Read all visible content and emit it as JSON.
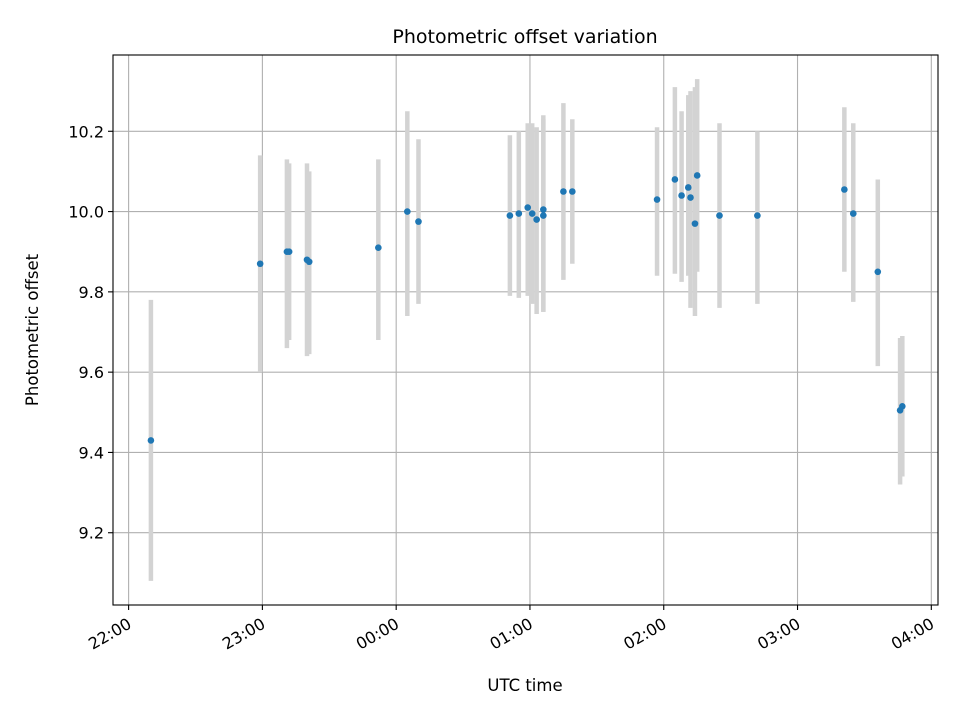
{
  "chart_data": {
    "type": "scatter",
    "title": "Photometric offset variation",
    "xlabel": "UTC time",
    "ylabel": "Photometric offset",
    "grid": true,
    "legend": "none",
    "colors": {
      "point": "#1f77b4",
      "errorbar": "#d3d3d3",
      "grid": "#b0b0b0",
      "axis": "#000000"
    },
    "xlim": [
      "21:53",
      "04:03"
    ],
    "ylim": [
      9.02,
      10.39
    ],
    "x_ticks": [
      "22:00",
      "23:00",
      "00:00",
      "01:00",
      "02:00",
      "03:00",
      "04:00"
    ],
    "y_ticks": [
      "9.2",
      "9.4",
      "9.6",
      "9.8",
      "10.0",
      "10.2"
    ],
    "points": [
      {
        "time": "22:10",
        "y": 9.43,
        "err_low": 9.08,
        "err_high": 9.78
      },
      {
        "time": "22:59",
        "y": 9.87,
        "err_low": 9.6,
        "err_high": 10.14
      },
      {
        "time": "23:11",
        "y": 9.9,
        "err_low": 9.66,
        "err_high": 10.13
      },
      {
        "time": "23:12",
        "y": 9.9,
        "err_low": 9.68,
        "err_high": 10.12
      },
      {
        "time": "23:20",
        "y": 9.88,
        "err_low": 9.64,
        "err_high": 10.12
      },
      {
        "time": "23:21",
        "y": 9.875,
        "err_low": 9.645,
        "err_high": 10.1
      },
      {
        "time": "23:52",
        "y": 9.91,
        "err_low": 9.68,
        "err_high": 10.13
      },
      {
        "time": "00:05",
        "y": 10.0,
        "err_low": 9.74,
        "err_high": 10.25
      },
      {
        "time": "00:10",
        "y": 9.975,
        "err_low": 9.77,
        "err_high": 10.18
      },
      {
        "time": "00:51",
        "y": 9.99,
        "err_low": 9.79,
        "err_high": 10.19
      },
      {
        "time": "00:55",
        "y": 9.995,
        "err_low": 9.785,
        "err_high": 10.2
      },
      {
        "time": "00:59",
        "y": 10.01,
        "err_low": 9.79,
        "err_high": 10.22
      },
      {
        "time": "01:01",
        "y": 9.995,
        "err_low": 9.77,
        "err_high": 10.22
      },
      {
        "time": "01:03",
        "y": 9.98,
        "err_low": 9.745,
        "err_high": 10.21
      },
      {
        "time": "01:06",
        "y": 10.005,
        "err_low": 9.75,
        "err_high": 10.23
      },
      {
        "time": "01:06",
        "y": 9.99,
        "err_low": 9.75,
        "err_high": 10.24
      },
      {
        "time": "01:15",
        "y": 10.05,
        "err_low": 9.83,
        "err_high": 10.27
      },
      {
        "time": "01:19",
        "y": 10.05,
        "err_low": 9.87,
        "err_high": 10.23
      },
      {
        "time": "01:57",
        "y": 10.03,
        "err_low": 9.84,
        "err_high": 10.21
      },
      {
        "time": "02:05",
        "y": 10.08,
        "err_low": 9.845,
        "err_high": 10.31
      },
      {
        "time": "02:08",
        "y": 10.04,
        "err_low": 9.825,
        "err_high": 10.25
      },
      {
        "time": "02:11",
        "y": 10.06,
        "err_low": 9.84,
        "err_high": 10.29
      },
      {
        "time": "02:12",
        "y": 10.035,
        "err_low": 9.76,
        "err_high": 10.3
      },
      {
        "time": "02:14",
        "y": 9.97,
        "err_low": 9.74,
        "err_high": 10.31
      },
      {
        "time": "02:15",
        "y": 10.09,
        "err_low": 9.85,
        "err_high": 10.33
      },
      {
        "time": "02:25",
        "y": 9.99,
        "err_low": 9.76,
        "err_high": 10.22
      },
      {
        "time": "02:42",
        "y": 9.99,
        "err_low": 9.77,
        "err_high": 10.2
      },
      {
        "time": "03:21",
        "y": 10.055,
        "err_low": 9.85,
        "err_high": 10.26
      },
      {
        "time": "03:25",
        "y": 9.995,
        "err_low": 9.775,
        "err_high": 10.22
      },
      {
        "time": "03:36",
        "y": 9.85,
        "err_low": 9.615,
        "err_high": 10.08
      },
      {
        "time": "03:46",
        "y": 9.505,
        "err_low": 9.32,
        "err_high": 9.685
      },
      {
        "time": "03:47",
        "y": 9.515,
        "err_low": 9.34,
        "err_high": 9.69
      }
    ]
  }
}
